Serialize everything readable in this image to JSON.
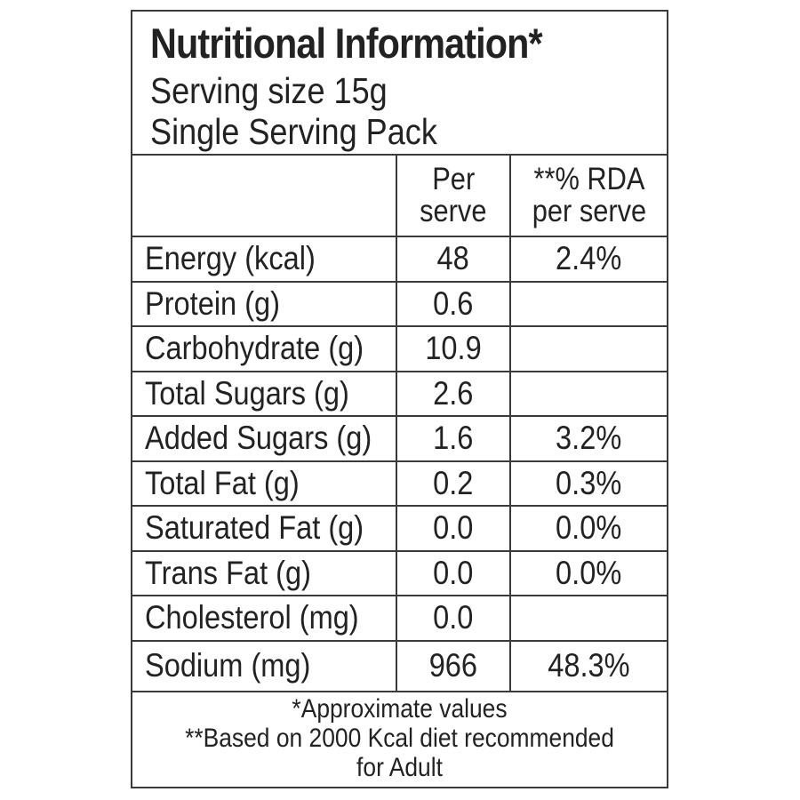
{
  "header": {
    "title": "Nutritional Information*",
    "serving_size": "Serving size 15g",
    "pack": "Single Serving Pack"
  },
  "table": {
    "columns": [
      "",
      "Per\nserve",
      "**% RDA\nper serve"
    ],
    "col_per_serve_line1": "Per",
    "col_per_serve_line2": "serve",
    "col_rda_line1": "**% RDA",
    "col_rda_line2": "per serve",
    "rows": [
      {
        "name": "Energy (kcal)",
        "per_serve": "48",
        "rda": "2.4%"
      },
      {
        "name": "Protein (g)",
        "per_serve": "0.6",
        "rda": ""
      },
      {
        "name": "Carbohydrate (g)",
        "per_serve": "10.9",
        "rda": ""
      },
      {
        "name": "Total Sugars (g)",
        "per_serve": "2.6",
        "rda": ""
      },
      {
        "name": "Added Sugars (g)",
        "per_serve": "1.6",
        "rda": "3.2%"
      },
      {
        "name": "Total Fat (g)",
        "per_serve": "0.2",
        "rda": "0.3%"
      },
      {
        "name": "Saturated Fat (g)",
        "per_serve": "0.0",
        "rda": "0.0%"
      },
      {
        "name": "Trans Fat (g)",
        "per_serve": "0.0",
        "rda": "0.0%"
      },
      {
        "name": "Cholesterol (mg)",
        "per_serve": "0.0",
        "rda": ""
      },
      {
        "name": "Sodium (mg)",
        "per_serve": "966",
        "rda": "48.3%"
      }
    ]
  },
  "footer": {
    "note1": "*Approximate values",
    "note2_line1": "**Based on 2000 Kcal diet recommended",
    "note2_line2": "for Adult"
  },
  "colors": {
    "text": "#222222",
    "border": "#3a3a3a",
    "background": "#ffffff"
  }
}
